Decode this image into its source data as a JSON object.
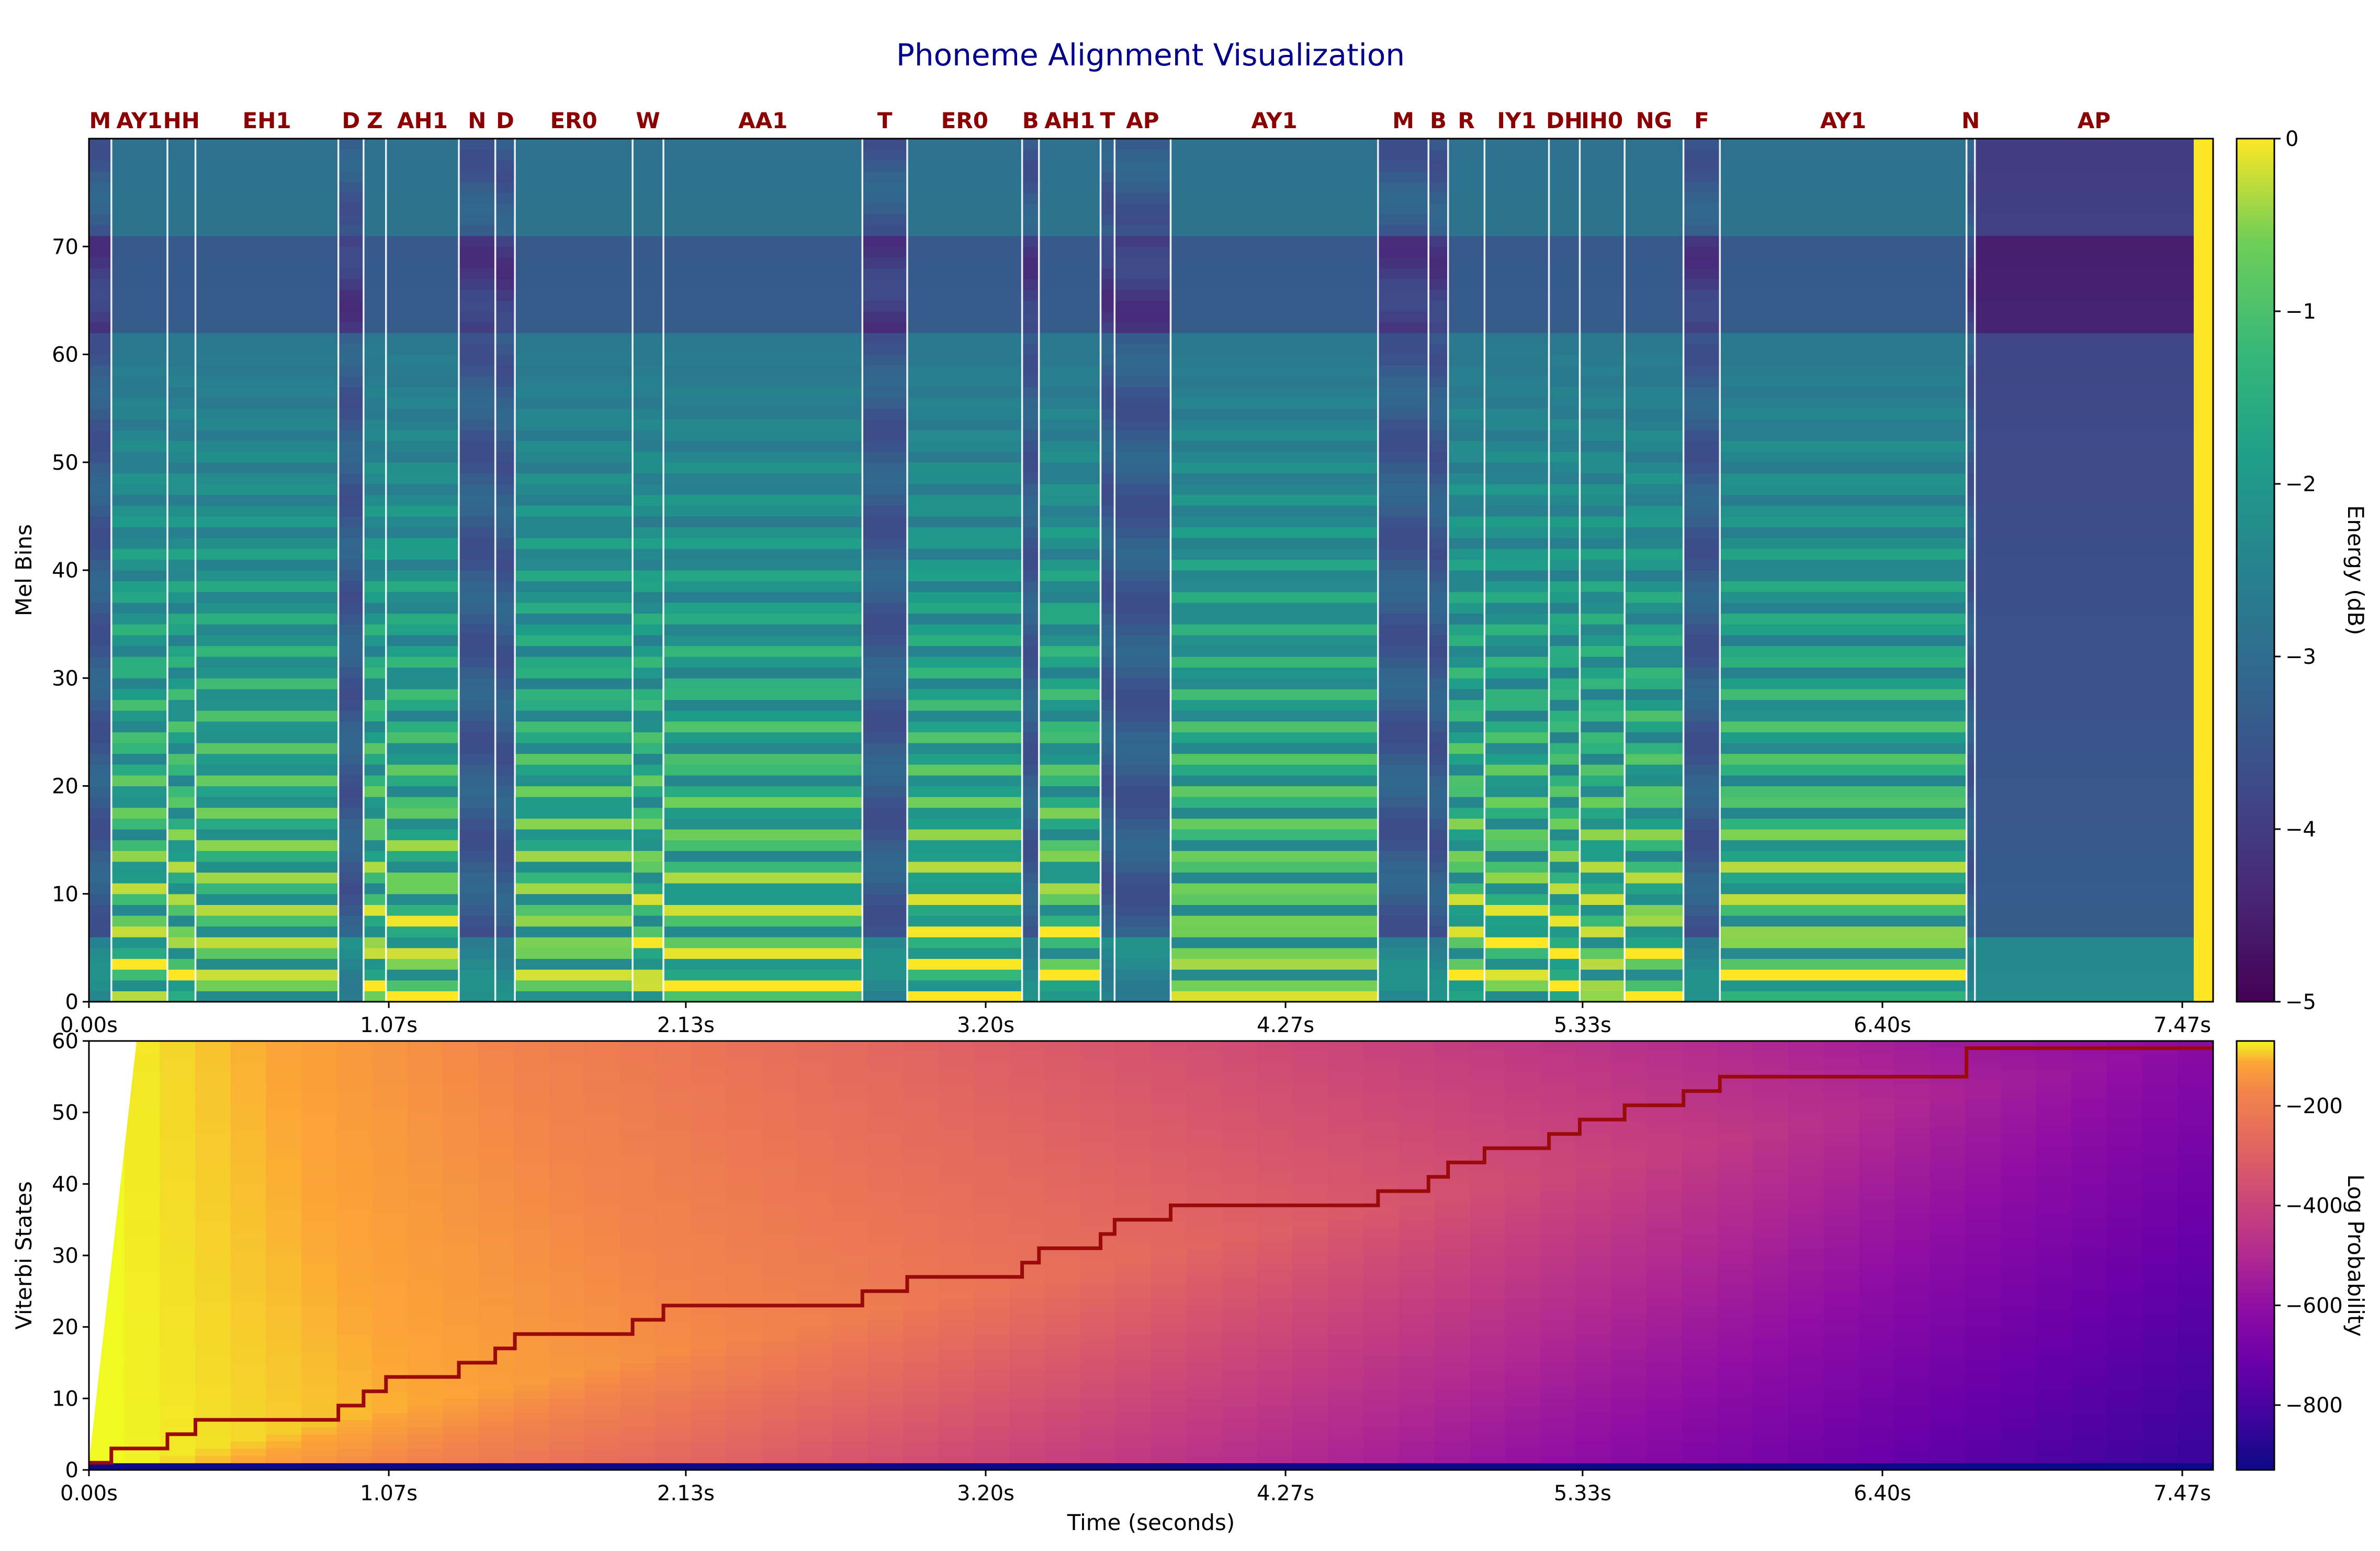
{
  "title": "Phoneme Alignment Visualization",
  "chart_data": [
    {
      "type": "heatmap",
      "name": "spectrogram",
      "ylabel": "Mel Bins",
      "xlabel": "",
      "xlim": [
        0,
        7.58
      ],
      "ylim": [
        0,
        80
      ],
      "x_ticks": [
        0.0,
        1.07,
        2.13,
        3.2,
        4.27,
        5.33,
        6.4,
        7.47
      ],
      "x_tick_labels": [
        "0.00s",
        "1.07s",
        "2.13s",
        "3.20s",
        "4.27s",
        "5.33s",
        "6.40s",
        "7.47s"
      ],
      "y_ticks": [
        0,
        10,
        20,
        30,
        40,
        50,
        60,
        70
      ],
      "y_tick_labels": [
        "0",
        "10",
        "20",
        "30",
        "40",
        "50",
        "60",
        "70"
      ],
      "colormap": "viridis",
      "colorbar": {
        "label": "Energy (dB)",
        "range": [
          -5,
          0
        ],
        "ticks": [
          0,
          -1,
          -2,
          -3,
          -4,
          -5
        ],
        "tick_labels": [
          "0",
          "−1",
          "−2",
          "−3",
          "−4",
          "−5"
        ]
      },
      "phonemes": [
        {
          "label": "M",
          "start": 0.0,
          "end": 0.08
        },
        {
          "label": "AY1",
          "start": 0.08,
          "end": 0.28
        },
        {
          "label": "HH",
          "start": 0.28,
          "end": 0.38
        },
        {
          "label": "EH1",
          "start": 0.38,
          "end": 0.89
        },
        {
          "label": "D",
          "start": 0.89,
          "end": 0.98
        },
        {
          "label": "Z",
          "start": 0.98,
          "end": 1.06
        },
        {
          "label": "AH1",
          "start": 1.06,
          "end": 1.32
        },
        {
          "label": "N",
          "start": 1.32,
          "end": 1.45
        },
        {
          "label": "D",
          "start": 1.45,
          "end": 1.52
        },
        {
          "label": "ER0",
          "start": 1.52,
          "end": 1.94
        },
        {
          "label": "W",
          "start": 1.94,
          "end": 2.05
        },
        {
          "label": "AA1",
          "start": 2.05,
          "end": 2.76
        },
        {
          "label": "T",
          "start": 2.76,
          "end": 2.92
        },
        {
          "label": "ER0",
          "start": 2.92,
          "end": 3.33
        },
        {
          "label": "B",
          "start": 3.33,
          "end": 3.39
        },
        {
          "label": "AH1",
          "start": 3.39,
          "end": 3.61
        },
        {
          "label": "T",
          "start": 3.61,
          "end": 3.66
        },
        {
          "label": "AP",
          "start": 3.66,
          "end": 3.86
        },
        {
          "label": "AY1",
          "start": 3.86,
          "end": 4.6
        },
        {
          "label": "M",
          "start": 4.6,
          "end": 4.78
        },
        {
          "label": "B",
          "start": 4.78,
          "end": 4.85
        },
        {
          "label": "R",
          "start": 4.85,
          "end": 4.98
        },
        {
          "label": "IY1",
          "start": 4.98,
          "end": 5.21
        },
        {
          "label": "DH",
          "start": 5.21,
          "end": 5.32
        },
        {
          "label": "IH0",
          "start": 5.32,
          "end": 5.48
        },
        {
          "label": "NG",
          "start": 5.48,
          "end": 5.69
        },
        {
          "label": "F",
          "start": 5.69,
          "end": 5.82
        },
        {
          "label": "AY1",
          "start": 5.82,
          "end": 6.7
        },
        {
          "label": "N",
          "start": 6.7,
          "end": 6.73
        },
        {
          "label": "AP",
          "start": 6.73,
          "end": 7.58
        }
      ]
    },
    {
      "type": "heatmap",
      "name": "viterbi",
      "ylabel": "Viterbi States",
      "xlabel": "Time (seconds)",
      "xlim": [
        0,
        7.58
      ],
      "ylim": [
        0,
        60
      ],
      "x_ticks": [
        0.0,
        1.07,
        2.13,
        3.2,
        4.27,
        5.33,
        6.4,
        7.47
      ],
      "x_tick_labels": [
        "0.00s",
        "1.07s",
        "2.13s",
        "3.20s",
        "4.27s",
        "5.33s",
        "6.40s",
        "7.47s"
      ],
      "y_ticks": [
        0,
        10,
        20,
        30,
        40,
        50,
        60
      ],
      "y_tick_labels": [
        "0",
        "10",
        "20",
        "30",
        "40",
        "50",
        "60"
      ],
      "colormap": "plasma",
      "colorbar": {
        "label": "Log Probability",
        "range": [
          -930,
          -70
        ],
        "ticks": [
          -200,
          -400,
          -600,
          -800
        ],
        "tick_labels": [
          "−200",
          "−400",
          "−600",
          "−800"
        ]
      },
      "path_color": "#9b0a0a",
      "path": [
        {
          "t": 0.0,
          "state": 1
        },
        {
          "t": 0.08,
          "state": 3
        },
        {
          "t": 0.28,
          "state": 5
        },
        {
          "t": 0.38,
          "state": 7
        },
        {
          "t": 0.89,
          "state": 9
        },
        {
          "t": 0.98,
          "state": 11
        },
        {
          "t": 1.06,
          "state": 13
        },
        {
          "t": 1.32,
          "state": 15
        },
        {
          "t": 1.45,
          "state": 17
        },
        {
          "t": 1.52,
          "state": 19
        },
        {
          "t": 1.94,
          "state": 21
        },
        {
          "t": 2.05,
          "state": 23
        },
        {
          "t": 2.76,
          "state": 25
        },
        {
          "t": 2.92,
          "state": 27
        },
        {
          "t": 3.33,
          "state": 29
        },
        {
          "t": 3.39,
          "state": 31
        },
        {
          "t": 3.61,
          "state": 33
        },
        {
          "t": 3.66,
          "state": 35
        },
        {
          "t": 3.86,
          "state": 37
        },
        {
          "t": 4.6,
          "state": 39
        },
        {
          "t": 4.78,
          "state": 41
        },
        {
          "t": 4.85,
          "state": 43
        },
        {
          "t": 4.98,
          "state": 45
        },
        {
          "t": 5.21,
          "state": 47
        },
        {
          "t": 5.32,
          "state": 49
        },
        {
          "t": 5.48,
          "state": 51
        },
        {
          "t": 5.69,
          "state": 53
        },
        {
          "t": 5.82,
          "state": 55
        },
        {
          "t": 6.7,
          "state": 59
        },
        {
          "t": 7.58,
          "state": 59
        }
      ]
    }
  ]
}
